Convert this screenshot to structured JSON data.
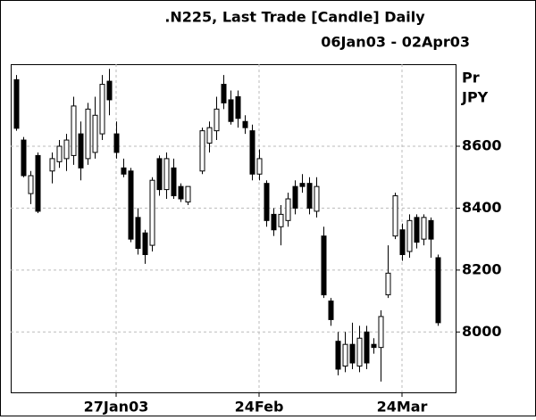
{
  "chart_data": {
    "type": "candlestick",
    "title": ".N225, Last Trade [Candle] Daily",
    "subtitle": "06Jan03 - 02Apr03",
    "y_axis_label": [
      "Pr",
      "JPY"
    ],
    "categories": [
      null,
      null,
      null,
      null,
      null,
      null,
      null,
      null,
      null,
      null,
      null,
      null,
      null,
      null,
      "27Jan03",
      null,
      null,
      null,
      null,
      null,
      null,
      null,
      null,
      null,
      null,
      null,
      null,
      null,
      null,
      null,
      null,
      null,
      null,
      null,
      "24Feb",
      null,
      null,
      null,
      null,
      null,
      null,
      null,
      null,
      null,
      null,
      null,
      null,
      null,
      null,
      null,
      null,
      null,
      null,
      null,
      "24Mar",
      null,
      null,
      null,
      null,
      null
    ],
    "series": [
      {
        "open": [
          8815,
          8620,
          8447,
          8570,
          null,
          8520,
          8550,
          8560,
          8570,
          8640,
          8560,
          8580,
          8640,
          8810,
          8640,
          8530,
          8520,
          8370,
          8320,
          8280,
          8560,
          8460,
          8530,
          8470,
          8420,
          null,
          8520,
          8610,
          8650,
          8800,
          8750,
          8760,
          8680,
          8650,
          8510,
          8480,
          8380,
          8340,
          8360,
          8470,
          8480,
          8480,
          8390,
          8310,
          8100,
          7970,
          7890,
          7960,
          7890,
          8000,
          7960,
          7950,
          8120,
          8310,
          8330,
          8260,
          8370,
          8300,
          8360,
          8240
        ],
        "high": [
          8830,
          8630,
          8520,
          8580,
          null,
          8580,
          8620,
          8640,
          8760,
          8680,
          8740,
          8760,
          8830,
          8850,
          8680,
          8560,
          8530,
          8400,
          8330,
          8500,
          8570,
          8580,
          8560,
          8480,
          8470,
          null,
          8660,
          8680,
          8760,
          8830,
          8780,
          8780,
          8700,
          8670,
          8590,
          8490,
          8400,
          8410,
          8450,
          8490,
          8510,
          8500,
          8500,
          8340,
          8110,
          8000,
          8000,
          8030,
          8020,
          8020,
          7980,
          8070,
          8280,
          8450,
          8350,
          8380,
          8380,
          8380,
          8370,
          8250
        ],
        "low": [
          8650,
          8500,
          8413,
          8384,
          null,
          8480,
          8530,
          8520,
          8540,
          8490,
          8540,
          8560,
          8620,
          8700,
          8560,
          8500,
          8290,
          8250,
          8220,
          8260,
          8440,
          8430,
          8430,
          8420,
          8410,
          null,
          8510,
          8580,
          8620,
          8720,
          8670,
          8660,
          8640,
          8490,
          8490,
          8340,
          8310,
          8280,
          8340,
          8380,
          8450,
          8380,
          8370,
          8110,
          8020,
          7860,
          7870,
          7880,
          7870,
          7880,
          7930,
          7840,
          8110,
          8300,
          8230,
          8240,
          8270,
          8280,
          8240,
          8020
        ],
        "close": [
          8658,
          8505,
          8505,
          8390,
          null,
          8560,
          8600,
          8620,
          8730,
          8530,
          8720,
          8700,
          8800,
          8750,
          8580,
          8510,
          8300,
          8270,
          8250,
          8490,
          8460,
          8560,
          8440,
          8430,
          8470,
          null,
          8650,
          8660,
          8720,
          8740,
          8680,
          8690,
          8660,
          8510,
          8560,
          8360,
          8330,
          8380,
          8430,
          8400,
          8470,
          8400,
          8470,
          8120,
          8040,
          7880,
          7960,
          7900,
          7980,
          7900,
          7950,
          8050,
          8190,
          8440,
          8250,
          8360,
          8290,
          8370,
          8300,
          8030
        ]
      }
    ],
    "ylim": [
      7805,
      8865
    ],
    "yticks": [
      8000,
      8200,
      8400,
      8600
    ],
    "grid": true,
    "up_color": "#ffffff",
    "down_color": "#000000"
  }
}
